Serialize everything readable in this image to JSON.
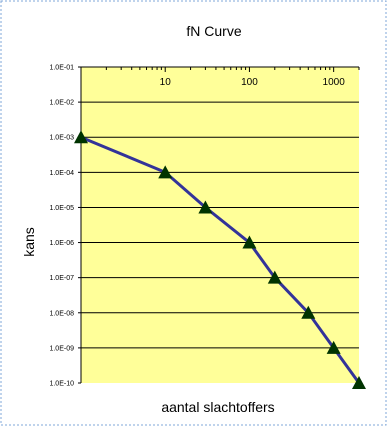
{
  "chart_data": {
    "type": "line",
    "title": "fN Curve",
    "xlabel": "aantal slachtoffers",
    "ylabel": "kans",
    "x_scale": "log",
    "y_scale": "log",
    "xlim": [
      1,
      2000
    ],
    "ylim": [
      1e-10,
      0.1
    ],
    "x_ticks": [
      {
        "value": 10,
        "label": "10"
      },
      {
        "value": 100,
        "label": "100"
      },
      {
        "value": 1000,
        "label": "1000"
      }
    ],
    "y_ticks": [
      {
        "value": 0.1,
        "label": "1.0E-01"
      },
      {
        "value": 0.01,
        "label": "1.0E-02"
      },
      {
        "value": 0.001,
        "label": "1.0E-03"
      },
      {
        "value": 0.0001,
        "label": "1.0E-04"
      },
      {
        "value": 1e-05,
        "label": "1.0E-05"
      },
      {
        "value": 1e-06,
        "label": "1.0E-06"
      },
      {
        "value": 1e-07,
        "label": "1.0E-07"
      },
      {
        "value": 1e-08,
        "label": "1.0E-08"
      },
      {
        "value": 1e-09,
        "label": "1.0E-09"
      },
      {
        "value": 1e-10,
        "label": "1.0E-10"
      }
    ],
    "grid": "horizontal",
    "series": [
      {
        "marker": "triangle",
        "x": [
          1,
          10,
          30,
          100,
          200,
          500,
          1000,
          2000
        ],
        "y": [
          0.001,
          0.0001,
          1e-05,
          1e-06,
          1e-07,
          1e-08,
          1e-09,
          1e-10
        ]
      }
    ],
    "colors": {
      "plot_background": "#FFFF99",
      "line": "#333399",
      "marker": "#003300",
      "gridline": "#000000",
      "frame_border": "#7FA7D8"
    }
  }
}
